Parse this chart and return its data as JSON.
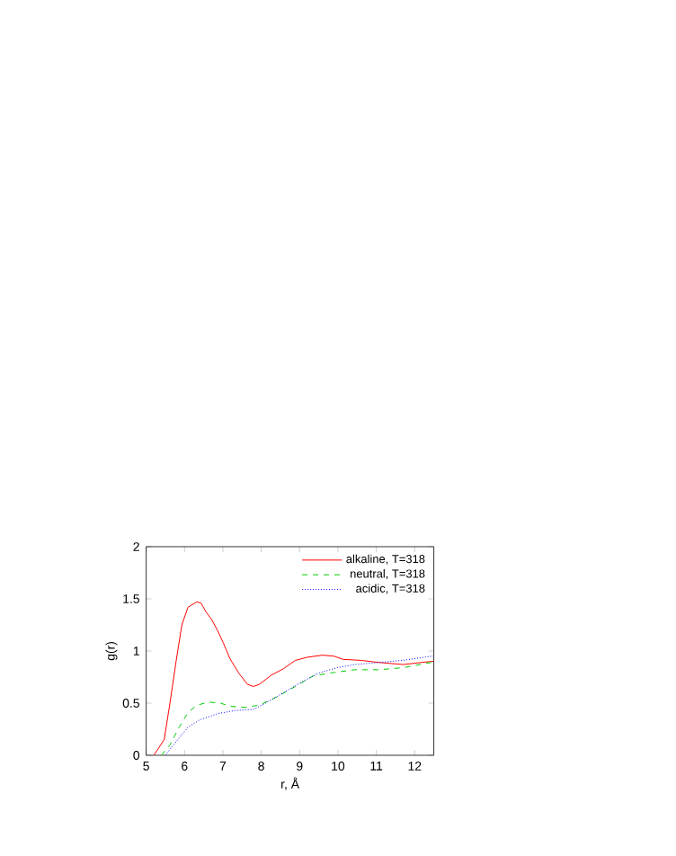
{
  "chart_data": {
    "type": "line",
    "xlabel": "r, Å",
    "ylabel": "g(r)",
    "xlim": [
      5,
      12.5
    ],
    "ylim": [
      0,
      2
    ],
    "xticks": [
      5,
      6,
      7,
      8,
      9,
      10,
      11,
      12
    ],
    "yticks": [
      0,
      0.5,
      1,
      1.5,
      2
    ],
    "legend": "top right",
    "grid": false,
    "marker": "none",
    "series": [
      {
        "name": "alkaline, T=318",
        "color": "#ff0000",
        "line_style": "solid",
        "x": [
          5.2,
          5.47,
          5.62,
          5.78,
          5.93,
          6.09,
          6.32,
          6.43,
          6.55,
          6.71,
          6.87,
          7.02,
          7.18,
          7.41,
          7.64,
          7.8,
          7.95,
          8.27,
          8.58,
          8.89,
          9.2,
          9.6,
          9.9,
          10.13,
          10.6,
          11.07,
          11.7,
          12.43,
          12.5
        ],
        "values": [
          0,
          0.15,
          0.5,
          0.9,
          1.25,
          1.42,
          1.47,
          1.46,
          1.38,
          1.3,
          1.19,
          1.07,
          0.93,
          0.79,
          0.68,
          0.66,
          0.68,
          0.77,
          0.83,
          0.91,
          0.94,
          0.96,
          0.95,
          0.92,
          0.91,
          0.89,
          0.87,
          0.9,
          0.9
        ]
      },
      {
        "name": "neutral, T=318",
        "color": "#00cc00",
        "line_style": "dashed",
        "x": [
          5.4,
          5.62,
          5.86,
          6.09,
          6.32,
          6.63,
          6.94,
          7.18,
          7.56,
          7.95,
          8.41,
          8.89,
          9.35,
          9.82,
          10.44,
          11.07,
          11.7,
          12.43,
          12.5
        ],
        "values": [
          0,
          0.1,
          0.27,
          0.41,
          0.48,
          0.51,
          0.5,
          0.47,
          0.46,
          0.48,
          0.56,
          0.66,
          0.76,
          0.79,
          0.82,
          0.82,
          0.84,
          0.89,
          0.89
        ]
      },
      {
        "name": "acidic, T=318",
        "color": "#0000ff",
        "line_style": "dotted",
        "x": [
          5.5,
          5.78,
          6.09,
          6.4,
          6.87,
          7.33,
          7.8,
          8.11,
          8.58,
          9.04,
          9.51,
          9.98,
          10.44,
          11.07,
          11.7,
          12.43,
          12.5
        ],
        "values": [
          0,
          0.13,
          0.27,
          0.34,
          0.4,
          0.43,
          0.44,
          0.5,
          0.6,
          0.7,
          0.79,
          0.84,
          0.87,
          0.89,
          0.91,
          0.95,
          0.95
        ]
      }
    ]
  }
}
